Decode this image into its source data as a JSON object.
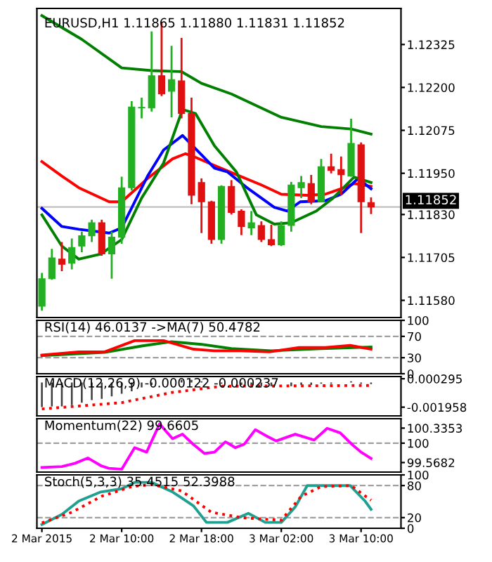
{
  "chart_data": [
    {
      "type": "candlestick",
      "title": "EURUSD,H1 1.11865 1.11880 1.11831 1.11852",
      "tick_labels": "y",
      "x": [
        "2015-03-02T02:00",
        "2015-03-02T03:00",
        "2015-03-02T04:00",
        "2015-03-02T05:00",
        "2015-03-02T06:00",
        "2015-03-02T07:00",
        "2015-03-02T08:00",
        "2015-03-02T09:00",
        "2015-03-02T10:00",
        "2015-03-02T11:00",
        "2015-03-02T12:00",
        "2015-03-02T13:00",
        "2015-03-02T14:00",
        "2015-03-02T15:00",
        "2015-03-02T16:00",
        "2015-03-02T17:00",
        "2015-03-02T18:00",
        "2015-03-02T19:00",
        "2015-03-02T20:00",
        "2015-03-02T21:00",
        "2015-03-02T22:00",
        "2015-03-02T23:00",
        "2015-03-03T00:00",
        "2015-03-03T01:00",
        "2015-03-03T02:00",
        "2015-03-03T03:00",
        "2015-03-03T04:00",
        "2015-03-03T05:00",
        "2015-03-03T06:00",
        "2015-03-03T07:00",
        "2015-03-03T08:00",
        "2015-03-03T09:00",
        "2015-03-03T10:00",
        "2015-03-03T11:00"
      ],
      "ohlc": [
        [
          1.11563,
          1.1166,
          1.1155,
          1.11643
        ],
        [
          1.11643,
          1.1173,
          1.1164,
          1.11704
        ],
        [
          1.117,
          1.1175,
          1.11665,
          1.11685
        ],
        [
          1.11688,
          1.1176,
          1.1167,
          1.11734
        ],
        [
          1.11738,
          1.1178,
          1.1172,
          1.11768
        ],
        [
          1.11768,
          1.11815,
          1.1175,
          1.11806
        ],
        [
          1.11806,
          1.11815,
          1.1171,
          1.11715
        ],
        [
          1.11715,
          1.1178,
          1.11643,
          1.11764
        ],
        [
          1.11764,
          1.1194,
          1.11745,
          1.11908
        ],
        [
          1.11908,
          1.1216,
          1.119,
          1.12143
        ],
        [
          1.1214,
          1.1217,
          1.1211,
          1.12142
        ],
        [
          1.1214,
          1.12363,
          1.1213,
          1.12234
        ],
        [
          1.12234,
          1.1239,
          1.12175,
          1.12181
        ],
        [
          1.12189,
          1.12321,
          1.12113,
          1.12223
        ],
        [
          1.12219,
          1.12344,
          1.1211,
          1.12124
        ],
        [
          1.12124,
          1.1217,
          1.1186,
          1.11886
        ],
        [
          1.11923,
          1.11935,
          1.11776,
          1.11867
        ],
        [
          1.11867,
          1.1187,
          1.11745,
          1.11757
        ],
        [
          1.11757,
          1.11915,
          1.11745,
          1.11912
        ],
        [
          1.11912,
          1.1193,
          1.1183,
          1.11836
        ],
        [
          1.1184,
          1.11845,
          1.1177,
          1.11795
        ],
        [
          1.11791,
          1.1184,
          1.1177,
          1.11806
        ],
        [
          1.11798,
          1.1181,
          1.1175,
          1.11757
        ],
        [
          1.11757,
          1.118,
          1.11738,
          1.11742
        ],
        [
          1.11742,
          1.1181,
          1.11738,
          1.11798
        ],
        [
          1.11798,
          1.11925,
          1.1178,
          1.11916
        ],
        [
          1.11908,
          1.11942,
          1.11878,
          1.11923
        ],
        [
          1.1192,
          1.11945,
          1.1186,
          1.11867
        ],
        [
          1.11867,
          1.11992,
          1.11865,
          1.11969
        ],
        [
          1.11969,
          1.12007,
          1.1195,
          1.11958
        ],
        [
          1.11961,
          1.11999,
          1.11886,
          1.11946
        ],
        [
          1.11942,
          1.12109,
          1.1194,
          1.12037
        ],
        [
          1.12033,
          1.1204,
          1.11776,
          1.11867
        ],
        [
          1.11865,
          1.1188,
          1.11831,
          1.11852
        ]
      ],
      "series": [
        {
          "type": "line",
          "color": "#007f00",
          "x": [
            "2015-03-02T02:00",
            "2015-03-02T06:00",
            "2015-03-02T10:00",
            "2015-03-02T13:00",
            "2015-03-02T16:00",
            "2015-03-02T18:00",
            "2015-03-02T21:00",
            "2015-03-03T02:00",
            "2015-03-03T06:00",
            "2015-03-03T09:00",
            "2015-03-03T11:00"
          ],
          "values": [
            1.12409,
            1.1234,
            1.12257,
            1.12249,
            1.12246,
            1.12212,
            1.12181,
            1.12113,
            1.12086,
            1.12079,
            1.12064
          ]
        },
        {
          "type": "line",
          "color": "#ff0000",
          "x": [
            "2015-03-02T02:00",
            "2015-03-02T04:00",
            "2015-03-02T05:42",
            "2015-03-02T08:45",
            "2015-03-02T10:00",
            "2015-03-02T12:36",
            "2015-03-02T15:06",
            "2015-03-02T16:24",
            "2015-03-02T17:12",
            "2015-03-02T19:18",
            "2015-03-02T21:30",
            "2015-03-03T00:00",
            "2015-03-03T02:00",
            "2015-03-03T04:36",
            "2015-03-03T06:24",
            "2015-03-03T08:00",
            "2015-03-03T09:18",
            "2015-03-03T11:00"
          ],
          "values": [
            1.11984,
            1.11942,
            1.11908,
            1.11867,
            1.11867,
            1.11935,
            1.11992,
            1.12007,
            1.11999,
            1.11973,
            1.11946,
            1.11916,
            1.11889,
            1.11886,
            1.11889,
            1.11905,
            1.1192,
            1.11912
          ]
        },
        {
          "type": "line",
          "color": "#0000ff",
          "x": [
            "2015-03-02T02:00",
            "2015-03-02T04:00",
            "2015-03-02T05:42",
            "2015-03-02T08:45",
            "2015-03-02T10:00",
            "2015-03-02T12:36",
            "2015-03-02T14:12",
            "2015-03-02T16:06",
            "2015-03-02T18:24",
            "2015-03-02T19:18",
            "2015-03-02T20:36",
            "2015-03-02T22:42",
            "2015-03-03T01:18",
            "2015-03-03T02:36",
            "2015-03-03T03:54",
            "2015-03-03T06:24",
            "2015-03-03T08:00",
            "2015-03-03T09:42",
            "2015-03-03T11:00"
          ],
          "values": [
            1.11848,
            1.11795,
            1.11787,
            1.11776,
            1.11791,
            1.11942,
            1.12018,
            1.1206,
            1.11992,
            1.11965,
            1.11954,
            1.11905,
            1.11851,
            1.1184,
            1.11867,
            1.1187,
            1.11889,
            1.11935,
            1.11905
          ]
        },
        {
          "type": "line",
          "color": "#008000",
          "x": [
            "2015-03-02T02:00",
            "2015-03-02T04:00",
            "2015-03-02T05:42",
            "2015-03-02T07:54",
            "2015-03-02T10:00",
            "2015-03-02T12:00",
            "2015-03-02T14:12",
            "2015-03-02T16:06",
            "2015-03-02T17:24",
            "2015-03-02T19:18",
            "2015-03-02T21:30",
            "2015-03-02T23:30",
            "2015-03-03T01:18",
            "2015-03-03T03:00",
            "2015-03-03T05:30",
            "2015-03-03T07:12",
            "2015-03-03T09:18",
            "2015-03-03T11:00"
          ],
          "values": [
            1.11829,
            1.11738,
            1.117,
            1.11715,
            1.11757,
            1.11878,
            1.1198,
            1.12136,
            1.12124,
            1.1203,
            1.11954,
            1.11829,
            1.11802,
            1.11806,
            1.1184,
            1.11878,
            1.11939,
            1.11923
          ]
        }
      ],
      "xlim": [
        "2015-03-02T01:30",
        "2015-03-03T14:00"
      ],
      "ylim": [
        1.1153,
        1.1243
      ],
      "yticks": [
        {
          "value": 1.1158,
          "label": "1.11580"
        },
        {
          "value": 1.11705,
          "label": "1.11705"
        },
        {
          "value": 1.1183,
          "label": "1.11830"
        },
        {
          "value": 1.1195,
          "label": "1.11950"
        },
        {
          "value": 1.12075,
          "label": "1.12075"
        },
        {
          "value": 1.122,
          "label": "1.12200"
        },
        {
          "value": 1.12325,
          "label": "1.12325"
        }
      ],
      "ref_lines": [
        {
          "axis": "y",
          "value": 1.11852,
          "label": "1.11852",
          "color": "#c0c0c0",
          "line_style": "solid"
        }
      ]
    },
    {
      "type": "line",
      "title": "RSI(14) 46.0137 ->MA(7) 50.4782",
      "tick_labels": "y",
      "series": [
        {
          "color": "#008000",
          "x": [
            "2015-03-02T02:00",
            "2015-03-02T08:18",
            "2015-03-02T12:00",
            "2015-03-02T15:00",
            "2015-03-02T18:00",
            "2015-03-02T21:00",
            "2015-03-03T01:00",
            "2015-03-03T06:00",
            "2015-03-03T11:00"
          ],
          "values": [
            34,
            40,
            52,
            60,
            55,
            47,
            43,
            47,
            50
          ]
        },
        {
          "color": "#ff0000",
          "x": [
            "2015-03-02T02:00",
            "2015-03-02T05:42",
            "2015-03-02T08:18",
            "2015-03-02T11:18",
            "2015-03-02T14:12",
            "2015-03-02T17:12",
            "2015-03-02T19:18",
            "2015-03-02T21:54",
            "2015-03-03T00:48",
            "2015-03-03T03:48",
            "2015-03-03T06:24",
            "2015-03-03T08:54",
            "2015-03-03T11:00"
          ],
          "values": [
            35,
            41,
            41,
            62,
            62,
            46,
            43,
            43,
            41,
            49,
            49,
            53,
            46
          ]
        }
      ],
      "xlim": [
        "2015-03-02T01:30",
        "2015-03-03T14:00"
      ],
      "ylim": [
        0,
        100
      ],
      "yticks": [
        0,
        30,
        70,
        100
      ],
      "ref_lines": [
        {
          "axis": "y",
          "value": 70,
          "color": "#a0a0a0",
          "line_style": "dashed"
        },
        {
          "axis": "y",
          "value": 30,
          "color": "#a0a0a0",
          "line_style": "dashed"
        }
      ]
    },
    {
      "type": "bar",
      "title": "MACD(12,26,9) -0.000122 -0.000237",
      "tick_labels": "y",
      "x": [
        "2015-03-02T02:00",
        "2015-03-02T03:00",
        "2015-03-02T04:00",
        "2015-03-02T05:00",
        "2015-03-02T06:00",
        "2015-03-02T07:00",
        "2015-03-02T08:00",
        "2015-03-02T09:00",
        "2015-03-02T10:00",
        "2015-03-02T11:00",
        "2015-03-02T12:00",
        "2015-03-02T13:00",
        "2015-03-02T14:00",
        "2015-03-02T15:00",
        "2015-03-02T16:00",
        "2015-03-02T17:00",
        "2015-03-02T18:00",
        "2015-03-02T19:00",
        "2015-03-02T20:00",
        "2015-03-02T21:00",
        "2015-03-02T22:00",
        "2015-03-02T23:00",
        "2015-03-03T00:00",
        "2015-03-03T01:00",
        "2015-03-03T02:00",
        "2015-03-03T03:00",
        "2015-03-03T04:00",
        "2015-03-03T05:00",
        "2015-03-03T06:00",
        "2015-03-03T07:00",
        "2015-03-03T08:00",
        "2015-03-03T09:00",
        "2015-03-03T10:00",
        "2015-03-03T11:00"
      ],
      "series": [
        {
          "type": "bar",
          "color": "#404040",
          "values": [
            -0.00196,
            -0.0019,
            -0.0019,
            -0.0018,
            -0.0016,
            -0.0014,
            -0.0013,
            -0.0011,
            -0.0009,
            -0.0007,
            -0.0004,
            -0.0002,
            null,
            null,
            0.0002,
            0.0002,
            0.0001,
            0.0,
            -0.0001,
            null,
            -0.0002,
            -0.0002,
            -0.0003,
            -0.0003,
            null,
            -0.0003,
            -0.0002,
            -0.0002,
            -0.0001,
            -0.0001,
            0.0,
            0.0001,
            -0.0001,
            -0.000122
          ]
        },
        {
          "type": "line",
          "color": "#ff0000",
          "line_style": "dotted",
          "x": [
            "2015-03-02T02:00",
            "2015-03-02T10:00",
            "2015-03-02T15:00",
            "2015-03-02T20:00",
            "2015-03-03T11:00"
          ],
          "values": [
            -0.0021,
            -0.0016,
            -0.0008,
            -0.0003,
            -0.000237
          ]
        }
      ],
      "xlim": [
        "2015-03-02T01:30",
        "2015-03-03T14:00"
      ],
      "ylim": [
        -0.00265,
        0.00047
      ],
      "yticks": [
        -0.001958,
        0.000295
      ]
    },
    {
      "type": "line",
      "title": "Momentum(22) 99.6605",
      "tick_labels": "y",
      "series": [
        {
          "color": "#ff00ff",
          "x": [
            "2015-03-02T02:00",
            "2015-03-02T04:00",
            "2015-03-02T05:18",
            "2015-03-02T06:36",
            "2015-03-02T07:54",
            "2015-03-02T08:42",
            "2015-03-02T10:00",
            "2015-03-02T11:18",
            "2015-03-02T12:30",
            "2015-03-02T13:48",
            "2015-03-02T15:06",
            "2015-03-02T16:06",
            "2015-03-02T17:12",
            "2015-03-02T18:18",
            "2015-03-02T19:18",
            "2015-03-02T20:24",
            "2015-03-02T21:24",
            "2015-03-02T22:18",
            "2015-03-02T23:24",
            "2015-03-03T00:36",
            "2015-03-03T01:30",
            "2015-03-03T03:24",
            "2015-03-03T05:18",
            "2015-03-03T06:36",
            "2015-03-03T07:54",
            "2015-03-03T09:06",
            "2015-03-03T10:00",
            "2015-03-03T11:00"
          ],
          "values": [
            99.46,
            99.48,
            99.55,
            99.67,
            99.5,
            99.44,
            99.42,
            99.9,
            99.8,
            100.43,
            100.1,
            100.2,
            99.97,
            99.77,
            99.8,
            100.03,
            99.9,
            99.98,
            100.3,
            100.15,
            100.05,
            100.2,
            100.07,
            100.33,
            100.23,
            99.97,
            99.8,
            99.6605
          ]
        }
      ],
      "xlim": [
        "2015-03-02T01:30",
        "2015-03-03T14:00"
      ],
      "ylim": [
        99.356,
        100.545
      ],
      "yticks": [
        99.5682,
        100,
        100.3353
      ],
      "ref_lines": [
        {
          "axis": "y",
          "value": 100,
          "color": "#a0a0a0",
          "line_style": "dashed"
        }
      ]
    },
    {
      "type": "line",
      "title": "Stoch(5,3,3) 35.4515 52.3988",
      "series": [
        {
          "color": "#20a090",
          "x": [
            "2015-03-02T02:00",
            "2015-03-02T04:00",
            "2015-03-02T05:42",
            "2015-03-02T07:54",
            "2015-03-02T10:00",
            "2015-03-02T11:18",
            "2015-03-02T13:00",
            "2015-03-02T15:06",
            "2015-03-02T17:12",
            "2015-03-02T18:30",
            "2015-03-02T20:36",
            "2015-03-02T22:42",
            "2015-03-03T00:24",
            "2015-03-03T02:00",
            "2015-03-03T03:24",
            "2015-03-03T04:36",
            "2015-03-03T07:12",
            "2015-03-03T08:54",
            "2015-03-03T10:24",
            "2015-03-03T11:00"
          ],
          "values": [
            7,
            26,
            51,
            68,
            74,
            86,
            86,
            68,
            42,
            11,
            11,
            28,
            11,
            11,
            40,
            80,
            80,
            80,
            51,
            35.4515
          ]
        },
        {
          "color": "#ff0000",
          "line_style": "dotted",
          "x": [
            "2015-03-02T02:00",
            "2015-03-02T05:00",
            "2015-03-02T08:00",
            "2015-03-02T11:00",
            "2015-03-02T13:00",
            "2015-03-02T16:00",
            "2015-03-02T19:00",
            "2015-03-02T22:00",
            "2015-03-03T02:00",
            "2015-03-03T04:00",
            "2015-03-03T06:00",
            "2015-03-03T09:00",
            "2015-03-03T11:00"
          ],
          "values": [
            10,
            30,
            60,
            78,
            82,
            70,
            30,
            20,
            15,
            60,
            78,
            80,
            52.3988
          ]
        }
      ],
      "xlim": [
        "2015-03-02T01:30",
        "2015-03-03T14:00"
      ],
      "ylim": [
        0,
        100
      ],
      "yticks": [
        0,
        20,
        80,
        100
      ],
      "xticks": [
        {
          "value": "2015-03-02T02:00",
          "label": "2 Mar 2015"
        },
        {
          "value": "2015-03-02T10:00",
          "label": "2 Mar 10:00"
        },
        {
          "value": "2015-03-02T18:00",
          "label": "2 Mar 18:00"
        },
        {
          "value": "2015-03-03T02:00",
          "label": "3 Mar 02:00"
        },
        {
          "value": "2015-03-03T10:00",
          "label": "3 Mar 10:00"
        }
      ],
      "ref_lines": [
        {
          "axis": "y",
          "value": 80,
          "color": "#a0a0a0",
          "line_style": "dashed"
        },
        {
          "axis": "y",
          "value": 20,
          "color": "#a0a0a0",
          "line_style": "dashed"
        }
      ]
    }
  ]
}
